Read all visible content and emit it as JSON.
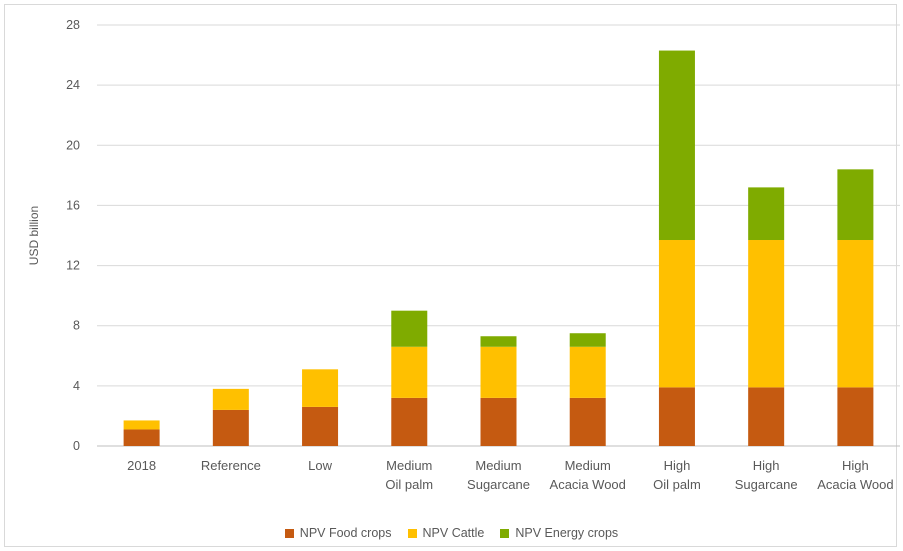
{
  "chart_data": {
    "type": "bar",
    "stacked": true,
    "ylabel": "USD billion",
    "ylim": [
      0,
      28
    ],
    "yticks": [
      0,
      4,
      8,
      12,
      16,
      20,
      24,
      28
    ],
    "grid": true,
    "legend_position": "bottom",
    "categories": [
      [
        "2018"
      ],
      [
        "Reference"
      ],
      [
        "Low"
      ],
      [
        "Medium",
        "Oil palm"
      ],
      [
        "Medium",
        "Sugarcane"
      ],
      [
        "Medium",
        "Acacia Wood"
      ],
      [
        "High",
        "Oil palm"
      ],
      [
        "High",
        "Sugarcane"
      ],
      [
        "High",
        "Acacia Wood"
      ]
    ],
    "series": [
      {
        "name": "NPV Food crops",
        "color": "#c55a11",
        "values": [
          1.1,
          2.4,
          2.6,
          3.2,
          3.2,
          3.2,
          3.9,
          3.9,
          3.9
        ]
      },
      {
        "name": "NPV Cattle",
        "color": "#ffc000",
        "values": [
          0.6,
          1.4,
          2.5,
          3.4,
          3.4,
          3.4,
          9.8,
          9.8,
          9.8
        ]
      },
      {
        "name": "NPV Energy crops",
        "color": "#7fab00",
        "values": [
          0,
          0,
          0,
          2.4,
          0.7,
          0.9,
          12.6,
          3.5,
          4.7
        ]
      }
    ]
  }
}
